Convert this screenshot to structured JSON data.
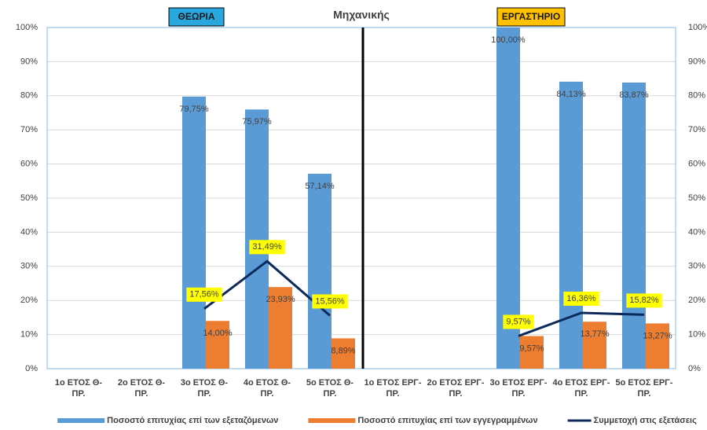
{
  "chart_data": {
    "type": "bar",
    "title": "Μηχανικής",
    "annotations": [
      "ΘΕΩΡΙΑ",
      "ΕΡΓΑΣΤΗΡΙΟ"
    ],
    "categories": [
      "1ο ΕΤΟΣ Θ- ΠΡ.",
      "2ο ΕΤΟΣ Θ- ΠΡ.",
      "3ο ΕΤΟΣ Θ- ΠΡ.",
      "4ο ΕΤΟΣ Θ- ΠΡ.",
      "5ο ΕΤΟΣ Θ- ΠΡ.",
      "1ο ΕΤΟΣ ΕΡΓ- ΠΡ.",
      "2ο ΕΤΟΣ ΕΡΓ- ΠΡ.",
      "3ο ΕΤΟΣ ΕΡΓ- ΠΡ.",
      "4ο ΕΤΟΣ ΕΡΓ- ΠΡ.",
      "5ο ΕΤΟΣ ΕΡΓ- ΠΡ."
    ],
    "series": [
      {
        "name": "Ποσοστό επιτυχίας επί των εξεταζόμενων",
        "type": "bar",
        "color": "#5b9bd5",
        "values": [
          null,
          null,
          79.75,
          75.97,
          57.14,
          null,
          null,
          100,
          84.13,
          83.87
        ],
        "value_labels": [
          null,
          null,
          "79,75%",
          "75,97%",
          "57,14%",
          null,
          null,
          "100,00%",
          "84,13%",
          "83,87%"
        ]
      },
      {
        "name": "Ποσοστό επιτυχίας επί των εγγεγραμμένων",
        "type": "bar",
        "color": "#ed7d31",
        "values": [
          null,
          null,
          14.0,
          23.93,
          8.89,
          null,
          null,
          9.57,
          13.77,
          13.27
        ],
        "value_labels": [
          null,
          null,
          "14,00%",
          "23,93%",
          "8,89%",
          null,
          null,
          "9,57%",
          "13,77%",
          "13,27%"
        ]
      },
      {
        "name": "Συμμετοχή στις εξετάσεις",
        "type": "line",
        "color": "#0e2a5c",
        "values": [
          null,
          null,
          17.56,
          31.49,
          15.56,
          null,
          null,
          9.57,
          16.36,
          15.82
        ],
        "value_labels": [
          null,
          null,
          "17,56%",
          "31,49%",
          "15,56%",
          null,
          null,
          "9,57%",
          "16,36%",
          "15,82%"
        ]
      }
    ],
    "ylim": [
      0,
      100
    ],
    "yticks": [
      {
        "value": 0,
        "label": "0%"
      },
      {
        "value": 10,
        "label": "10%"
      },
      {
        "value": 20,
        "label": "20%"
      },
      {
        "value": 30,
        "label": "30%"
      },
      {
        "value": 40,
        "label": "40%"
      },
      {
        "value": 50,
        "label": "50%"
      },
      {
        "value": 60,
        "label": "60%"
      },
      {
        "value": 70,
        "label": "70%"
      },
      {
        "value": 80,
        "label": "80%"
      },
      {
        "value": 90,
        "label": "90%"
      },
      {
        "value": 100,
        "label": "100%"
      }
    ],
    "y2lim": [
      0,
      100
    ],
    "y2ticks": [
      {
        "value": 0,
        "label": "0%"
      },
      {
        "value": 10,
        "label": "10%"
      },
      {
        "value": 20,
        "label": "20%"
      },
      {
        "value": 30,
        "label": "30%"
      },
      {
        "value": 40,
        "label": "40%"
      },
      {
        "value": 50,
        "label": "50%"
      },
      {
        "value": 60,
        "label": "60%"
      },
      {
        "value": 70,
        "label": "70%"
      },
      {
        "value": 80,
        "label": "80%"
      },
      {
        "value": 90,
        "label": "90%"
      },
      {
        "value": 100,
        "label": "100%"
      }
    ],
    "grid": true,
    "legend": "bottom"
  }
}
